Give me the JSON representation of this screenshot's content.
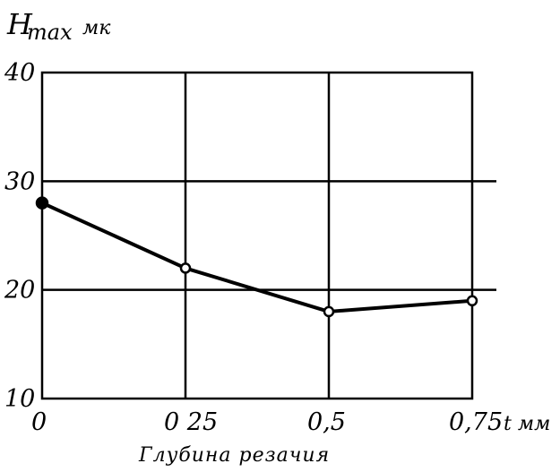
{
  "chart_data": {
    "type": "line",
    "ylabel": "H",
    "ylabel_sub": "max",
    "ylabel_unit": "мк",
    "xlabel": "Глубина резачия",
    "x_axis_unit": "t мм",
    "x": [
      0,
      0.25,
      0.5,
      0.75
    ],
    "x_tick_labels": [
      "0",
      "0 25",
      "0,5",
      "0,75"
    ],
    "xlim": [
      0,
      0.75
    ],
    "y": [
      28,
      22,
      18,
      19
    ],
    "ylim": [
      10,
      40
    ],
    "y_ticks": [
      10,
      20,
      30,
      40
    ],
    "y_tick_labels": [
      "10",
      "20",
      "30",
      "40"
    ],
    "grid": true,
    "line_color": "#000000"
  }
}
